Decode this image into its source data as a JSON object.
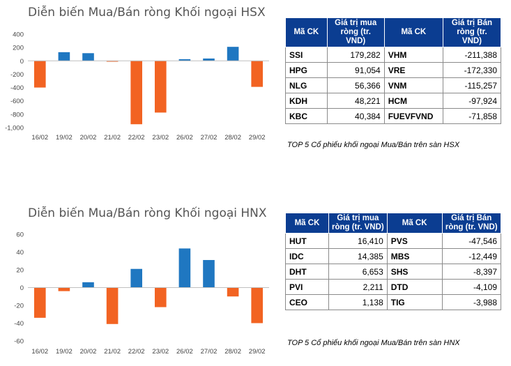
{
  "chart_data": [
    {
      "type": "bar",
      "title": "Diễn biến Mua/Bán ròng Khối ngoại HSX",
      "categories": [
        "16/02",
        "19/02",
        "20/02",
        "21/02",
        "22/02",
        "23/02",
        "26/02",
        "27/02",
        "28/02",
        "29/02"
      ],
      "values": [
        -400,
        130,
        115,
        -10,
        -950,
        -775,
        25,
        35,
        210,
        -390
      ],
      "yticks": [
        "400",
        "200",
        "0",
        "-200",
        "-400",
        "-600",
        "-800",
        "-1,000"
      ],
      "ylim": [
        -1000,
        400
      ],
      "grid": false,
      "colors": {
        "positive": "#1f77c1",
        "negative": "#f26322"
      }
    },
    {
      "type": "bar",
      "title": "Diễn biến Mua/Bán ròng Khối ngoại HNX",
      "categories": [
        "16/02",
        "19/02",
        "20/02",
        "21/02",
        "22/02",
        "23/02",
        "26/02",
        "27/02",
        "28/02",
        "29/02"
      ],
      "values": [
        -34,
        -4,
        6,
        -41,
        21,
        -22,
        44,
        31,
        -10,
        -40
      ],
      "yticks": [
        "60",
        "40",
        "20",
        "0",
        "-20",
        "-40",
        "-60"
      ],
      "ylim": [
        -60,
        60
      ],
      "grid": false,
      "colors": {
        "positive": "#1f77c1",
        "negative": "#f26322"
      }
    }
  ],
  "hsx_table": {
    "headers": [
      "Mã CK",
      "Giá trị mua ròng (tr. VND)",
      "Mã CK",
      "Giá trị Bán ròng (tr. VND)"
    ],
    "rows": [
      [
        "SSI",
        "179,282",
        "VHM",
        "-211,388"
      ],
      [
        "HPG",
        "91,054",
        "VRE",
        "-172,330"
      ],
      [
        "NLG",
        "56,366",
        "VNM",
        "-115,257"
      ],
      [
        "KDH",
        "48,221",
        "HCM",
        "-97,924"
      ],
      [
        "KBC",
        "40,384",
        "FUEVFVND",
        "-71,858"
      ]
    ],
    "caption": "TOP 5 Cổ phiếu khối ngoại Mua/Bán trên sàn HSX"
  },
  "hnx_table": {
    "headers": [
      "Mã CK",
      "Giá trị mua ròng (tr. VND)",
      "Mã CK",
      "Giá trị Bán ròng (tr. VND)"
    ],
    "rows": [
      [
        "HUT",
        "16,410",
        "PVS",
        "-47,546"
      ],
      [
        "IDC",
        "14,385",
        "MBS",
        "-12,449"
      ],
      [
        "DHT",
        "6,653",
        "SHS",
        "-8,397"
      ],
      [
        "PVI",
        "2,211",
        "DTD",
        "-4,109"
      ],
      [
        "CEO",
        "1,138",
        "TIG",
        "-3,988"
      ]
    ],
    "caption": "TOP 5 Cổ phiếu khối ngoại Mua/Bán trên sàn HNX"
  }
}
